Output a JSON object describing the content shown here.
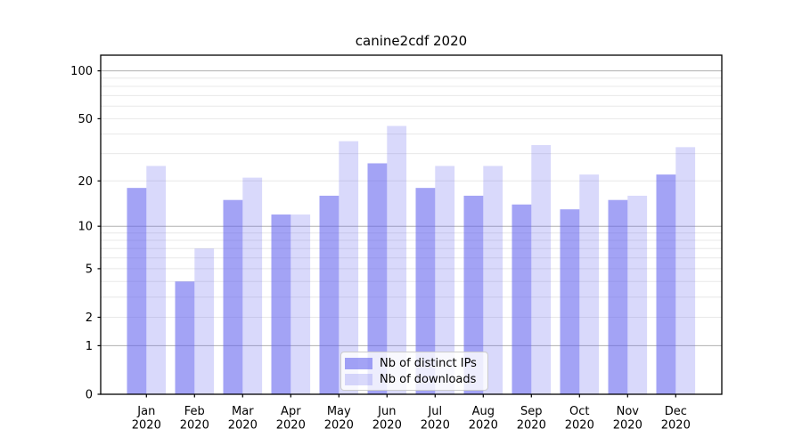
{
  "figure": {
    "title": "canine2cdf 2020"
  },
  "legend": {
    "items": [
      {
        "label": "Nb of distinct IPs",
        "color": "rgba(102,102,238,0.60)"
      },
      {
        "label": "Nb of downloads",
        "color": "rgba(102,102,238,0.25)"
      }
    ]
  },
  "chart_data": {
    "type": "bar",
    "title": "canine2cdf 2020",
    "categories": [
      "Jan",
      "Feb",
      "Mar",
      "Apr",
      "May",
      "Jun",
      "Jul",
      "Aug",
      "Sep",
      "Oct",
      "Nov",
      "Dec"
    ],
    "category_year": "2020",
    "series": [
      {
        "name": "Nb of distinct IPs",
        "color": "rgba(102,102,238,0.60)",
        "values": [
          18,
          4,
          15,
          12,
          16,
          26,
          18,
          16,
          14,
          13,
          15,
          22
        ]
      },
      {
        "name": "Nb of downloads",
        "color": "rgba(102,102,238,0.25)",
        "values": [
          25,
          7,
          21,
          12,
          36,
          45,
          25,
          25,
          34,
          22,
          16,
          33
        ]
      }
    ],
    "xlabel": "",
    "ylabel": "",
    "yscale": "log1p",
    "ylim": [
      0,
      125
    ],
    "y_tick_labels": [
      100,
      50,
      20,
      10,
      5,
      2,
      1,
      0
    ],
    "y_major_gridlines": [
      1,
      10,
      100
    ],
    "y_minor_gridlines": [
      2,
      3,
      4,
      5,
      6,
      7,
      8,
      9,
      20,
      30,
      40,
      50,
      60,
      70,
      80,
      90
    ],
    "grid": true,
    "legend_position": "lower center",
    "colors": {
      "axis": "#000000",
      "tick_label": "#000000",
      "grid_major": "#b0b0b0",
      "grid_minor": "#e8e8e8",
      "background": "#ffffff"
    }
  }
}
